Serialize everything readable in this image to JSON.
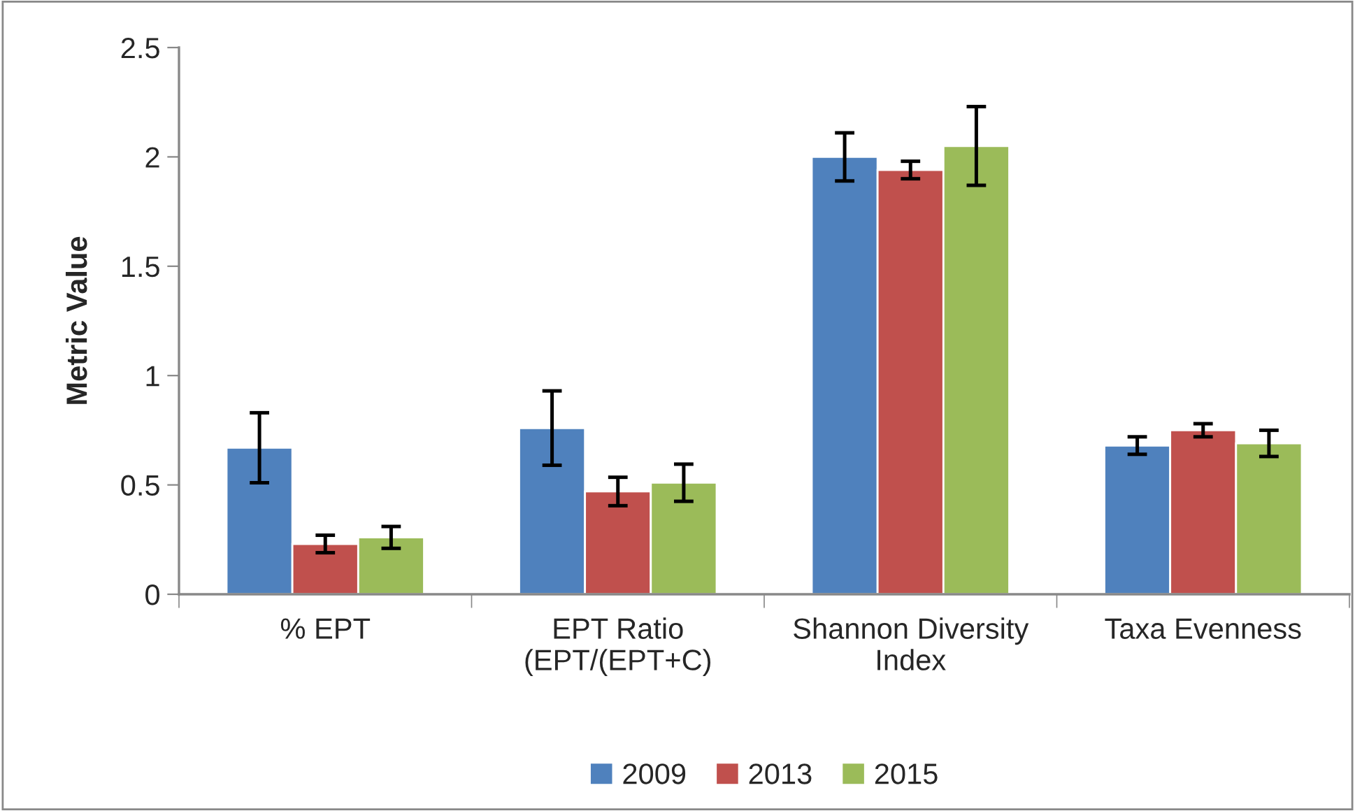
{
  "chart_data": {
    "type": "bar",
    "ylabel": "Metric Value",
    "categories": [
      "% EPT",
      "EPT Ratio\n(EPT/(EPT+C)",
      "Shannon Diversity\nIndex",
      "Taxa Evenness"
    ],
    "series": [
      {
        "name": "2009",
        "color": "#4f81bd",
        "values": [
          0.67,
          0.76,
          2.0,
          0.68
        ],
        "errors": [
          0.16,
          0.17,
          0.11,
          0.04
        ]
      },
      {
        "name": "2013",
        "color": "#c0504d",
        "values": [
          0.23,
          0.47,
          1.94,
          0.75
        ],
        "errors": [
          0.04,
          0.065,
          0.04,
          0.03
        ]
      },
      {
        "name": "2015",
        "color": "#9bbb59",
        "values": [
          0.26,
          0.51,
          2.05,
          0.69
        ],
        "errors": [
          0.05,
          0.085,
          0.18,
          0.06
        ]
      }
    ],
    "ylim": [
      0,
      2.5
    ],
    "yticks": [
      0,
      0.5,
      1,
      1.5,
      2,
      2.5
    ],
    "grid": false,
    "legend": "bottom"
  }
}
